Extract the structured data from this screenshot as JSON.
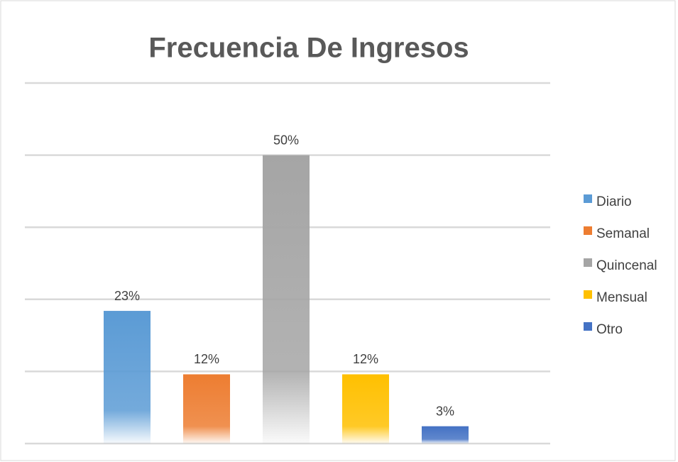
{
  "chart_data": {
    "type": "bar",
    "title": "Frecuencia De Ingresos",
    "series": [
      {
        "name": "Diario",
        "color": "#5b9bd5",
        "values": [
          23
        ],
        "value_labels": [
          "23%"
        ]
      },
      {
        "name": "Semanal",
        "color": "#ed7d31",
        "values": [
          12
        ],
        "value_labels": [
          "12%"
        ]
      },
      {
        "name": "Quincenal",
        "color": "#a5a5a5",
        "values": [
          50
        ],
        "value_labels": [
          "50%"
        ]
      },
      {
        "name": "Mensual",
        "color": "#ffc000",
        "values": [
          12
        ],
        "value_labels": [
          "12%"
        ]
      },
      {
        "name": "Otro",
        "color": "#4472c4",
        "values": [
          3
        ],
        "value_labels": [
          "3%"
        ]
      }
    ],
    "ylim": [
      0,
      62.5
    ],
    "yticks": [
      0,
      12.5,
      25,
      37.5,
      50,
      62.5
    ],
    "grid": true,
    "legend": "right"
  }
}
